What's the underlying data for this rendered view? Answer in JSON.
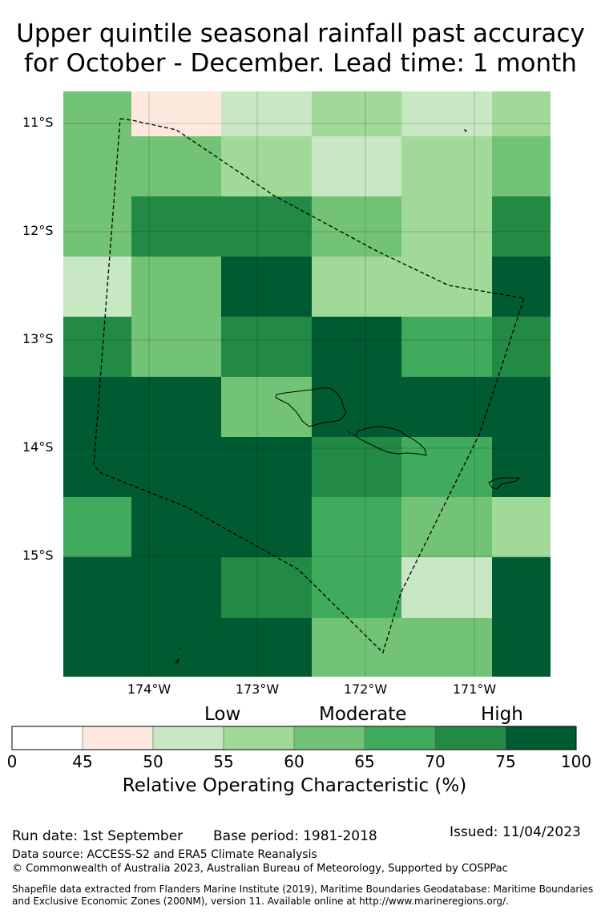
{
  "title_line1": "Upper quintile seasonal rainfall past accuracy",
  "title_line2": "for October - December. Lead time: 1 month",
  "lat_labels": [
    "11°S",
    "12°S",
    "13°S",
    "14°S",
    "15°S"
  ],
  "lon_labels": [
    "174°W",
    "173°W",
    "172°W",
    "171°W"
  ],
  "category_labels": {
    "low": "Low",
    "moderate": "Moderate",
    "high": "High"
  },
  "colorbar": {
    "ticks": [
      "0",
      "45",
      "50",
      "55",
      "60",
      "65",
      "70",
      "75",
      "100"
    ],
    "colors": [
      "#ffffff",
      "#fee9df",
      "#c7e8c2",
      "#a0d998",
      "#72c375",
      "#40aa5d",
      "#228a45",
      "#005a32"
    ],
    "title": "Relative Operating Characteristic (%)"
  },
  "grid_values": [
    [
      62,
      47,
      52,
      57,
      52,
      57
    ],
    [
      62,
      62,
      57,
      52,
      57,
      62
    ],
    [
      62,
      72,
      72,
      62,
      57,
      72
    ],
    [
      52,
      62,
      80,
      57,
      57,
      80
    ],
    [
      72,
      62,
      72,
      80,
      67,
      72
    ],
    [
      80,
      80,
      62,
      80,
      80,
      80
    ],
    [
      80,
      80,
      80,
      72,
      67,
      80
    ],
    [
      67,
      80,
      80,
      67,
      62,
      57
    ],
    [
      80,
      80,
      72,
      67,
      52,
      80
    ],
    [
      80,
      80,
      80,
      62,
      62,
      80
    ]
  ],
  "footer": {
    "run_date": "Run date: 1st September",
    "base_period": "Base period: 1981-2018",
    "issued": "Issued: 11/04/2023",
    "data_source": "Data source: ACCESS-S2 and ERA5 Climate Reanalysis",
    "copyright": "© Commonwealth of Australia 2023, Australian Bureau of Meteorology, Supported by COSPPac",
    "shapefile_line1": "Shapefile data extracted from Flanders Marine Institute (2019), Maritime Boundaries Geodatabase: Maritime Boundaries",
    "shapefile_line2": "and Exclusive Economic Zones (200NM), version 11. Available online at http://www.marineregions.org/."
  }
}
